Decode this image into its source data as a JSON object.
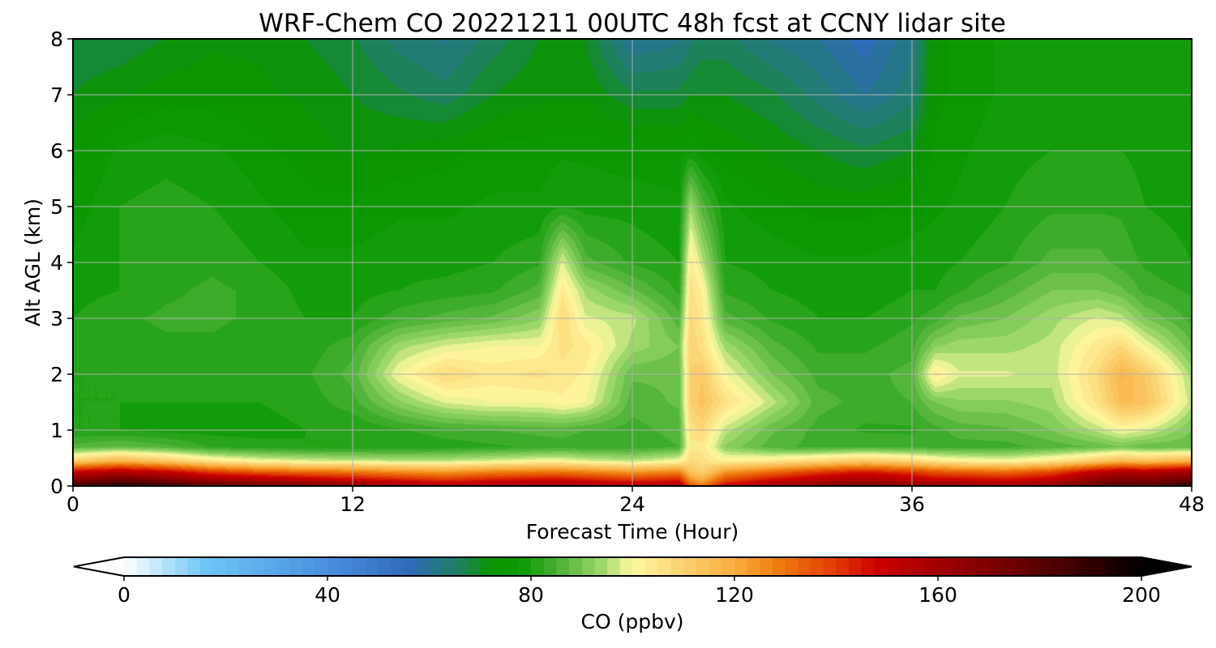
{
  "chart_data": {
    "type": "heatmap",
    "title": "WRF-Chem CO  20221211 00UTC 48h fcst at CCNY lidar site",
    "xlabel": "Forecast Time (Hour)",
    "ylabel": "Alt AGL (km)",
    "xlim": [
      0,
      48
    ],
    "ylim": [
      0,
      8
    ],
    "x_ticks": [
      "0",
      "12",
      "24",
      "36",
      "48"
    ],
    "y_ticks": [
      "0",
      "1",
      "2",
      "3",
      "4",
      "5",
      "6",
      "7",
      "8"
    ],
    "grid": true,
    "x": [
      0,
      2,
      4,
      6,
      8,
      10,
      12,
      14,
      16,
      18,
      20,
      21,
      22,
      24,
      26,
      26.5,
      27,
      28,
      30,
      32,
      34,
      36,
      37,
      38,
      40,
      42,
      44,
      45,
      46,
      48
    ],
    "y": [
      0,
      0.1,
      0.25,
      0.45,
      0.7,
      1.0,
      1.5,
      2.0,
      2.5,
      3.0,
      3.5,
      4.0,
      5.0,
      6.0,
      7.0,
      8.0
    ],
    "values": [
      [
        185,
        195,
        190,
        180,
        176,
        172,
        168,
        162,
        158,
        160,
        162,
        162,
        160,
        158,
        160,
        135,
        130,
        150,
        160,
        168,
        172,
        168,
        166,
        166,
        162,
        165,
        178,
        182,
        180,
        192
      ],
      [
        170,
        178,
        172,
        162,
        158,
        154,
        150,
        146,
        142,
        146,
        148,
        148,
        146,
        142,
        145,
        125,
        120,
        138,
        148,
        155,
        160,
        154,
        150,
        150,
        148,
        152,
        168,
        172,
        170,
        178
      ],
      [
        150,
        155,
        150,
        140,
        135,
        132,
        130,
        126,
        124,
        128,
        130,
        130,
        128,
        124,
        128,
        114,
        110,
        124,
        132,
        140,
        145,
        140,
        136,
        134,
        132,
        138,
        152,
        156,
        154,
        160
      ],
      [
        110,
        118,
        112,
        104,
        100,
        98,
        97,
        96,
        96,
        98,
        100,
        100,
        98,
        96,
        100,
        108,
        106,
        102,
        104,
        108,
        112,
        108,
        104,
        102,
        100,
        104,
        112,
        116,
        114,
        118
      ],
      [
        86,
        88,
        86,
        82,
        81,
        80,
        80,
        80,
        81,
        82,
        83,
        84,
        83,
        83,
        85,
        104,
        104,
        92,
        86,
        84,
        85,
        84,
        84,
        84,
        84,
        86,
        88,
        90,
        88,
        88
      ],
      [
        80,
        80,
        79,
        79,
        79,
        80,
        80,
        82,
        84,
        85,
        86,
        86,
        85,
        84,
        86,
        106,
        108,
        96,
        88,
        84,
        82,
        82,
        84,
        86,
        87,
        90,
        96,
        100,
        98,
        90
      ],
      [
        80,
        80,
        80,
        80,
        80,
        81,
        84,
        92,
        98,
        100,
        100,
        102,
        100,
        86,
        88,
        110,
        114,
        106,
        96,
        86,
        84,
        85,
        90,
        92,
        92,
        94,
        106,
        116,
        114,
        96
      ],
      [
        80,
        80,
        81,
        81,
        81,
        82,
        86,
        100,
        108,
        104,
        106,
        104,
        102,
        88,
        88,
        110,
        112,
        100,
        90,
        84,
        84,
        86,
        104,
        98,
        98,
        96,
        108,
        118,
        112,
        94
      ],
      [
        80,
        81,
        82,
        82,
        81,
        81,
        84,
        94,
        98,
        100,
        100,
        106,
        104,
        94,
        90,
        110,
        106,
        94,
        86,
        82,
        82,
        84,
        92,
        94,
        94,
        96,
        104,
        108,
        100,
        88
      ],
      [
        80,
        82,
        83,
        83,
        82,
        80,
        80,
        84,
        86,
        88,
        92,
        108,
        98,
        96,
        86,
        108,
        104,
        86,
        82,
        80,
        80,
        82,
        84,
        88,
        90,
        94,
        98,
        96,
        90,
        84
      ],
      [
        79,
        80,
        82,
        83,
        82,
        79,
        79,
        80,
        81,
        82,
        86,
        104,
        94,
        88,
        82,
        106,
        102,
        82,
        80,
        79,
        78,
        80,
        80,
        82,
        86,
        90,
        90,
        88,
        84,
        82
      ],
      [
        78,
        80,
        81,
        82,
        80,
        78,
        78,
        79,
        79,
        80,
        82,
        98,
        86,
        82,
        80,
        104,
        96,
        80,
        79,
        78,
        78,
        79,
        79,
        80,
        82,
        86,
        86,
        84,
        82,
        80
      ],
      [
        76,
        80,
        81,
        80,
        78,
        76,
        76,
        77,
        77,
        78,
        78,
        80,
        79,
        79,
        78,
        94,
        86,
        78,
        76,
        74,
        74,
        76,
        77,
        78,
        80,
        82,
        82,
        82,
        80,
        79
      ],
      [
        74,
        78,
        79,
        78,
        76,
        74,
        72,
        73,
        74,
        76,
        76,
        77,
        77,
        76,
        76,
        78,
        76,
        74,
        72,
        70,
        68,
        70,
        76,
        77,
        79,
        80,
        80,
        80,
        79,
        78
      ],
      [
        70,
        72,
        74,
        74,
        73,
        72,
        70,
        68,
        66,
        70,
        72,
        72,
        72,
        68,
        68,
        70,
        70,
        70,
        68,
        64,
        60,
        64,
        74,
        76,
        78,
        78,
        78,
        78,
        78,
        78
      ],
      [
        68,
        68,
        70,
        72,
        72,
        70,
        68,
        64,
        62,
        66,
        70,
        70,
        70,
        60,
        62,
        64,
        66,
        66,
        62,
        60,
        56,
        62,
        74,
        76,
        78,
        78,
        78,
        78,
        78,
        78
      ]
    ],
    "colorbar": {
      "label": "CO  (ppbv)",
      "min": 0,
      "max": 200,
      "ticks": [
        "0",
        "40",
        "80",
        "120",
        "160",
        "200"
      ],
      "extend": "both",
      "levels": 80,
      "colormap": [
        [
          0,
          "#ffffff"
        ],
        [
          16,
          "#6cc6f5"
        ],
        [
          40,
          "#4a8fe0"
        ],
        [
          56,
          "#2f6ab8"
        ],
        [
          66,
          "#1e8060"
        ],
        [
          72,
          "#0a9400"
        ],
        [
          78,
          "#0b9904"
        ],
        [
          86,
          "#52b43a"
        ],
        [
          94,
          "#9ed86c"
        ],
        [
          100,
          "#fffaa0"
        ],
        [
          110,
          "#fad070"
        ],
        [
          120,
          "#f9ae40"
        ],
        [
          128,
          "#f08010"
        ],
        [
          140,
          "#e03a00"
        ],
        [
          148,
          "#cc0000"
        ],
        [
          160,
          "#a00000"
        ],
        [
          175,
          "#6e0000"
        ],
        [
          190,
          "#300000"
        ],
        [
          200,
          "#000000"
        ]
      ]
    }
  }
}
